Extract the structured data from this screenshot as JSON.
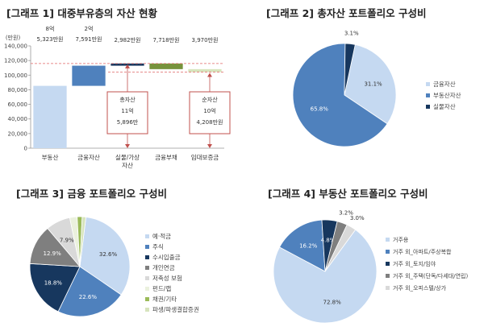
{
  "chart_data": [
    {
      "type": "bar",
      "title": "[그래프 1] 대중부유층의 자산 현황",
      "ylabel": "(만원)",
      "ylim": [
        0,
        140000
      ],
      "yticks": [
        "0",
        "20,000",
        "40,000",
        "60,000",
        "80,000",
        "100,000",
        "120,000",
        "140,000"
      ],
      "categories": [
        "부동산",
        "금융자산",
        "실물/가상자산",
        "금융부채",
        "임대보증금"
      ],
      "values": [
        85323,
        27591,
        2982,
        -7718,
        -3970
      ],
      "value_labels": [
        [
          "8억",
          "5,323만원"
        ],
        [
          "2억",
          "7,591만원"
        ],
        [
          "2,982만원"
        ],
        [
          "7,718만원"
        ],
        [
          "3,970만원"
        ]
      ],
      "total_assets_line": 115896,
      "net_assets_line": 104208,
      "annotations": [
        {
          "lines": [
            "총자산",
            "11억",
            "5,896만"
          ]
        },
        {
          "lines": [
            "순자산",
            "10억",
            "4,208만원"
          ]
        }
      ],
      "colors": [
        "#c5d9f1",
        "#4f81bd",
        "#17375e",
        "#77933c",
        "#d7e4bd"
      ]
    },
    {
      "type": "pie",
      "title": "[그래프 2] 총자산 포트폴리오 구성비",
      "categories": [
        "금융자산",
        "부동산자산",
        "실물자산"
      ],
      "values": [
        31.1,
        65.8,
        3.1
      ],
      "labels": [
        "31.1%",
        "65.8%",
        "3.1%"
      ],
      "colors": [
        "#c5d9f1",
        "#4f81bd",
        "#17375e"
      ],
      "legend": "right"
    },
    {
      "type": "pie",
      "title": "[그래프 3] 금융 포트폴리오 구성비",
      "categories": [
        "예·적금",
        "주식",
        "수시입출금",
        "개인연금",
        "저축성 보험",
        "펀드/랩",
        "채권/기타",
        "파생/파생결합증권"
      ],
      "values": [
        32.6,
        22.6,
        18.8,
        12.9,
        7.9,
        2.4,
        1.6,
        1.2
      ],
      "labels": [
        "32.6%",
        "22.6%",
        "18.8%",
        "12.9%",
        "7.9%",
        "",
        "",
        ""
      ],
      "colors": [
        "#c5d9f1",
        "#4f81bd",
        "#17375e",
        "#7f7f7f",
        "#d9d9d9",
        "#ebf1de",
        "#9bbb59",
        "#d7e4bd"
      ],
      "legend": "right"
    },
    {
      "type": "pie",
      "title": "[그래프 4] 부동산 포트폴리오 구성비",
      "categories": [
        "거주용",
        "거주 외_아파트/주상복합",
        "거주 외_토지/임야",
        "거주 외_주택(단독/다세대/연립)",
        "거주 외_오피스텔/상가"
      ],
      "values": [
        72.8,
        16.2,
        4.8,
        3.2,
        3.0
      ],
      "labels": [
        "72.8%",
        "16.2%",
        "4.8%",
        "3.2%",
        "3.0%"
      ],
      "colors": [
        "#c5d9f1",
        "#4f81bd",
        "#17375e",
        "#7f7f7f",
        "#d9d9d9"
      ],
      "legend": "right"
    }
  ]
}
